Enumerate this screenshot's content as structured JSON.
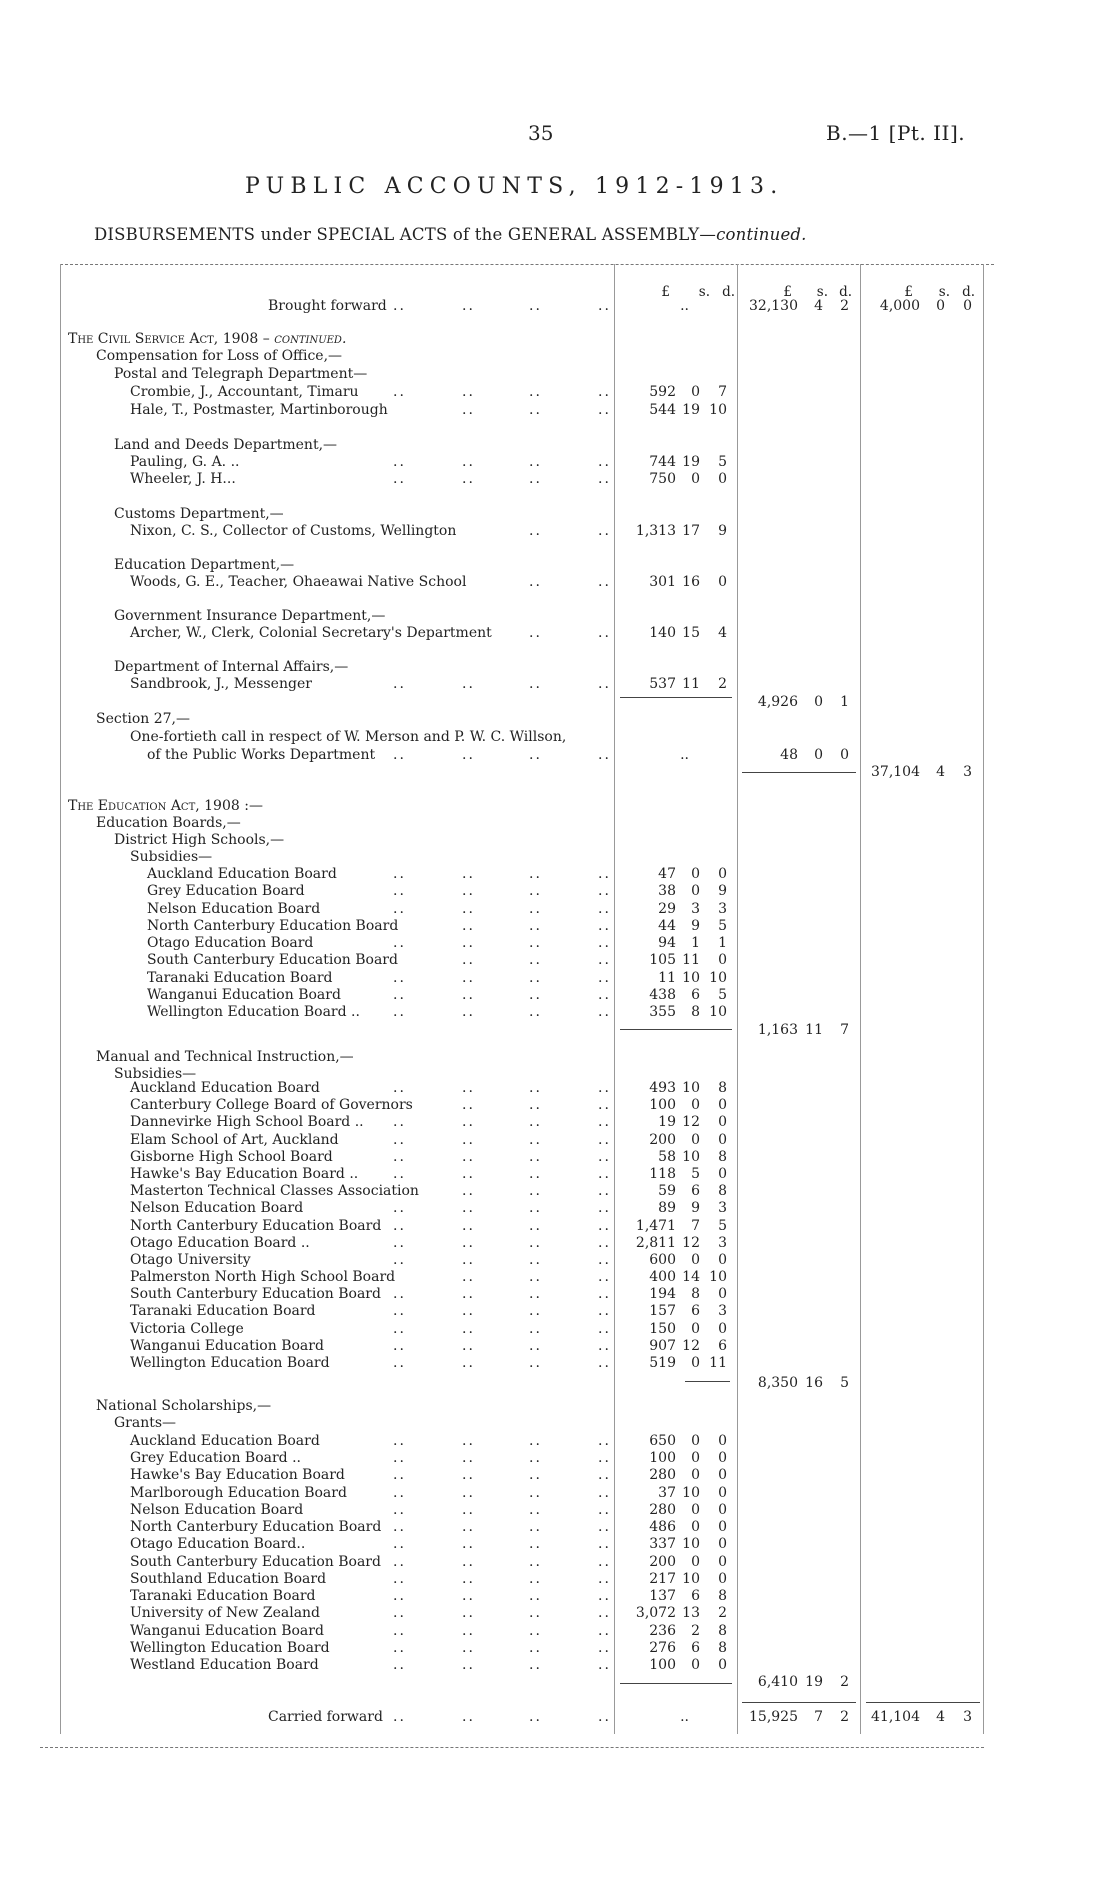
{
  "header": {
    "page_number": "35",
    "reference": "B.—1 [Pt. II]."
  },
  "title": "PUBLIC ACCOUNTS, 1912-1913.",
  "subtitle": {
    "main": "DISBURSEMENTS under SPECIAL ACTS of the GENERAL ASSEMBLY—",
    "italic": "continued."
  },
  "column_headers": [
    {
      "pound": "£",
      "s": "s.",
      "d": "d."
    },
    {
      "pound": "£",
      "s": "s.",
      "d": "d."
    },
    {
      "pound": "£",
      "s": "s.",
      "d": "d."
    }
  ],
  "rows": [
    {
      "label": "Brought forward",
      "kind": "carry",
      "leaders": true,
      "c1": [
        "..",
        "",
        ""
      ],
      "c2": [
        "32,130",
        "4",
        "2"
      ],
      "c3": [
        "4,000",
        "0",
        "0"
      ]
    },
    {
      "label": "The Civil Service Act, 1908 – ",
      "italic": "continued.",
      "level": 0,
      "smallcaps": true
    },
    {
      "label": "Compensation for Loss of Office,—",
      "level": 1
    },
    {
      "label": "Postal and Telegraph Department—",
      "level": 2
    },
    {
      "label": "Crombie, J., Accountant, Timaru",
      "level": 3,
      "leaders": true,
      "c1": [
        "592",
        "0",
        "7"
      ]
    },
    {
      "label": "Hale, T., Postmaster, Martinborough",
      "level": 3,
      "leaders": true,
      "c1": [
        "544",
        "19",
        "10"
      ]
    },
    {
      "label": "Land and Deeds Department,—",
      "level": 2
    },
    {
      "label": "Pauling, G. A. ..",
      "level": 3,
      "leaders": true,
      "c1": [
        "744",
        "19",
        "5"
      ]
    },
    {
      "label": "Wheeler, J. H...",
      "level": 3,
      "leaders": true,
      "c1": [
        "750",
        "0",
        "0"
      ]
    },
    {
      "label": "Customs Department,—",
      "level": 2
    },
    {
      "label": "Nixon, C. S., Collector of Customs, Wellington",
      "level": 3,
      "leaders": true,
      "c1": [
        "1,313",
        "17",
        "9"
      ]
    },
    {
      "label": "Education Department,—",
      "level": 2
    },
    {
      "label": "Woods, G. E., Teacher, Ohaeawai Native School",
      "level": 3,
      "leaders": true,
      "c1": [
        "301",
        "16",
        "0"
      ]
    },
    {
      "label": "Government Insurance Department,—",
      "level": 2
    },
    {
      "label": "Archer, W., Clerk, Colonial Secretary's Department",
      "level": 3,
      "leaders": true,
      "c1": [
        "140",
        "15",
        "4"
      ]
    },
    {
      "label": "Department of Internal Affairs,—",
      "level": 2
    },
    {
      "label": "Sandbrook, J., Messenger",
      "level": 3,
      "leaders": true,
      "c1": [
        "537",
        "11",
        "2"
      ]
    },
    {
      "label": "",
      "c2": [
        "4,926",
        "0",
        "1"
      ]
    },
    {
      "label": "Section 27,—",
      "level": 1
    },
    {
      "label": "One-fortieth call in respect of W. Merson and P. W. C. Willson,",
      "level": 3
    },
    {
      "label": "of the Public Works Department",
      "level": 4,
      "leaders": true,
      "c1": [
        "..",
        "",
        ""
      ],
      "c2": [
        "48",
        "0",
        "0"
      ]
    },
    {
      "label": "",
      "c3": [
        "37,104",
        "4",
        "3"
      ]
    },
    {
      "label": "The Education Act, 1908 :—",
      "level": 0,
      "smallcaps": true
    },
    {
      "label": "Education Boards,—",
      "level": 1
    },
    {
      "label": "District High Schools,—",
      "level": 2
    },
    {
      "label": "Subsidies—",
      "level": 3
    },
    {
      "label": "Auckland Education Board",
      "level": 4,
      "leaders": true,
      "c1": [
        "47",
        "0",
        "0"
      ]
    },
    {
      "label": "Grey Education Board",
      "level": 4,
      "leaders": true,
      "c1": [
        "38",
        "0",
        "9"
      ]
    },
    {
      "label": "Nelson Education Board",
      "level": 4,
      "leaders": true,
      "c1": [
        "29",
        "3",
        "3"
      ]
    },
    {
      "label": "North Canterbury Education Board",
      "level": 4,
      "leaders": true,
      "c1": [
        "44",
        "9",
        "5"
      ]
    },
    {
      "label": "Otago Education Board",
      "level": 4,
      "leaders": true,
      "c1": [
        "94",
        "1",
        "1"
      ]
    },
    {
      "label": "South Canterbury Education Board",
      "level": 4,
      "leaders": true,
      "c1": [
        "105",
        "11",
        "0"
      ]
    },
    {
      "label": "Taranaki Education Board",
      "level": 4,
      "leaders": true,
      "c1": [
        "11",
        "10",
        "10"
      ]
    },
    {
      "label": "Wanganui Education Board",
      "level": 4,
      "leaders": true,
      "c1": [
        "438",
        "6",
        "5"
      ]
    },
    {
      "label": "Wellington Education Board ..",
      "level": 4,
      "leaders": true,
      "c1": [
        "355",
        "8",
        "10"
      ]
    },
    {
      "label": "",
      "c2": [
        "1,163",
        "11",
        "7"
      ]
    },
    {
      "label": "Manual and Technical Instruction,—",
      "level": 1
    },
    {
      "label": "Subsidies—",
      "level": 2
    },
    {
      "label": "Auckland Education Board",
      "level": 3,
      "leaders": true,
      "c1": [
        "493",
        "10",
        "8"
      ]
    },
    {
      "label": "Canterbury College Board of Governors",
      "level": 3,
      "leaders": true,
      "c1": [
        "100",
        "0",
        "0"
      ]
    },
    {
      "label": "Dannevirke High School Board ..",
      "level": 3,
      "leaders": true,
      "c1": [
        "19",
        "12",
        "0"
      ]
    },
    {
      "label": "Elam School of Art, Auckland",
      "level": 3,
      "leaders": true,
      "c1": [
        "200",
        "0",
        "0"
      ]
    },
    {
      "label": "Gisborne High School Board",
      "level": 3,
      "leaders": true,
      "c1": [
        "58",
        "10",
        "8"
      ]
    },
    {
      "label": "Hawke's Bay Education Board ..",
      "level": 3,
      "leaders": true,
      "c1": [
        "118",
        "5",
        "0"
      ]
    },
    {
      "label": "Masterton Technical Classes Association",
      "level": 3,
      "leaders": true,
      "c1": [
        "59",
        "6",
        "8"
      ]
    },
    {
      "label": "Nelson Education Board",
      "level": 3,
      "leaders": true,
      "c1": [
        "89",
        "9",
        "3"
      ]
    },
    {
      "label": "North Canterbury Education Board",
      "level": 3,
      "leaders": true,
      "c1": [
        "1,471",
        "7",
        "5"
      ]
    },
    {
      "label": "Otago Education Board ..",
      "level": 3,
      "leaders": true,
      "c1": [
        "2,811",
        "12",
        "3"
      ]
    },
    {
      "label": "Otago University",
      "level": 3,
      "leaders": true,
      "c1": [
        "600",
        "0",
        "0"
      ]
    },
    {
      "label": "Palmerston North High School Board",
      "level": 3,
      "leaders": true,
      "c1": [
        "400",
        "14",
        "10"
      ]
    },
    {
      "label": "South Canterbury Education Board",
      "level": 3,
      "leaders": true,
      "c1": [
        "194",
        "8",
        "0"
      ]
    },
    {
      "label": "Taranaki Education Board",
      "level": 3,
      "leaders": true,
      "c1": [
        "157",
        "6",
        "3"
      ]
    },
    {
      "label": "Victoria College",
      "level": 3,
      "leaders": true,
      "c1": [
        "150",
        "0",
        "0"
      ]
    },
    {
      "label": "Wanganui Education Board",
      "level": 3,
      "leaders": true,
      "c1": [
        "907",
        "12",
        "6"
      ]
    },
    {
      "label": "Wellington Education Board",
      "level": 3,
      "leaders": true,
      "c1": [
        "519",
        "0",
        "11"
      ]
    },
    {
      "label": "",
      "c2": [
        "8,350",
        "16",
        "5"
      ]
    },
    {
      "label": "National Scholarships,—",
      "level": 1
    },
    {
      "label": "Grants—",
      "level": 2
    },
    {
      "label": "Auckland Education Board",
      "level": 3,
      "leaders": true,
      "c1": [
        "650",
        "0",
        "0"
      ]
    },
    {
      "label": "Grey Education Board ..",
      "level": 3,
      "leaders": true,
      "c1": [
        "100",
        "0",
        "0"
      ]
    },
    {
      "label": "Hawke's Bay Education Board",
      "level": 3,
      "leaders": true,
      "c1": [
        "280",
        "0",
        "0"
      ]
    },
    {
      "label": "Marlborough Education Board",
      "level": 3,
      "leaders": true,
      "c1": [
        "37",
        "10",
        "0"
      ]
    },
    {
      "label": "Nelson Education Board",
      "level": 3,
      "leaders": true,
      "c1": [
        "280",
        "0",
        "0"
      ]
    },
    {
      "label": "North Canterbury Education Board",
      "level": 3,
      "leaders": true,
      "c1": [
        "486",
        "0",
        "0"
      ]
    },
    {
      "label": "Otago Education Board..",
      "level": 3,
      "leaders": true,
      "c1": [
        "337",
        "10",
        "0"
      ]
    },
    {
      "label": "South Canterbury Education Board",
      "level": 3,
      "leaders": true,
      "c1": [
        "200",
        "0",
        "0"
      ]
    },
    {
      "label": "Southland Education Board",
      "level": 3,
      "leaders": true,
      "c1": [
        "217",
        "10",
        "0"
      ]
    },
    {
      "label": "Taranaki Education Board",
      "level": 3,
      "leaders": true,
      "c1": [
        "137",
        "6",
        "8"
      ]
    },
    {
      "label": "University of New Zealand",
      "level": 3,
      "leaders": true,
      "c1": [
        "3,072",
        "13",
        "2"
      ]
    },
    {
      "label": "Wanganui Education Board",
      "level": 3,
      "leaders": true,
      "c1": [
        "236",
        "2",
        "8"
      ]
    },
    {
      "label": "Wellington Education Board",
      "level": 3,
      "leaders": true,
      "c1": [
        "276",
        "6",
        "8"
      ]
    },
    {
      "label": "Westland Education Board",
      "level": 3,
      "leaders": true,
      "c1": [
        "100",
        "0",
        "0"
      ]
    },
    {
      "label": "",
      "c2": [
        "6,410",
        "19",
        "2"
      ]
    },
    {
      "label": "Carried forward",
      "kind": "carry",
      "leaders": true,
      "c1": [
        "..",
        "",
        ""
      ],
      "c2": [
        "15,925",
        "7",
        "2"
      ],
      "c3": [
        "41,104",
        "4",
        "3"
      ]
    }
  ]
}
